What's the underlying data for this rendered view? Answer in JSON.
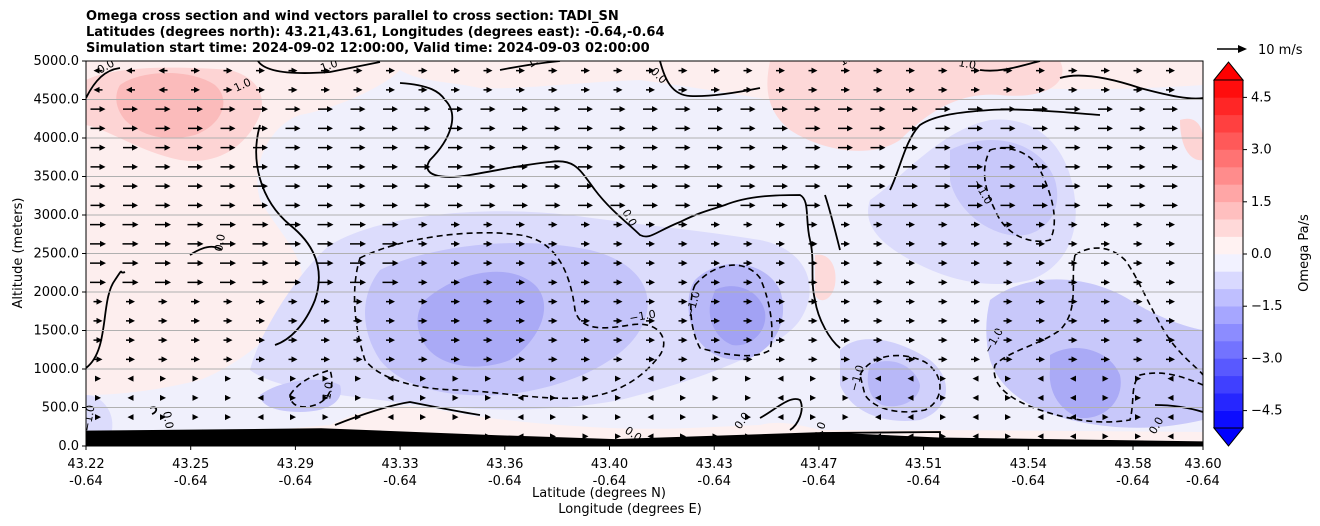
{
  "chart_data": {
    "type": "heatmap",
    "title_lines": [
      "Omega cross section and wind vectors parallel to cross section: TADI_SN",
      "Latitudes (degrees north): 43.21,43.61, Longitudes (degrees east): -0.64,-0.64",
      "Simulation start time: 2024-09-02 12:00:00, Valid time: 2024-09-03 02:00:00"
    ],
    "ylabel": "Altitude (meters)",
    "xlabel_lines": [
      "Latitude (degrees N)",
      "Longitude (degrees E)"
    ],
    "y_ticks": [
      "0.0",
      "500.0",
      "1000.0",
      "1500.0",
      "2000.0",
      "2500.0",
      "3000.0",
      "3500.0",
      "4000.0",
      "4500.0",
      "5000.0"
    ],
    "y_tick_values": [
      0,
      500,
      1000,
      1500,
      2000,
      2500,
      3000,
      3500,
      4000,
      4500,
      5000
    ],
    "ylim": [
      0,
      5000
    ],
    "x_ticks": [
      {
        "lat": "43.22",
        "lon": "-0.64"
      },
      {
        "lat": "43.25",
        "lon": "-0.64"
      },
      {
        "lat": "43.29",
        "lon": "-0.64"
      },
      {
        "lat": "43.33",
        "lon": "-0.64"
      },
      {
        "lat": "43.36",
        "lon": "-0.64"
      },
      {
        "lat": "43.40",
        "lon": "-0.64"
      },
      {
        "lat": "43.43",
        "lon": "-0.64"
      },
      {
        "lat": "43.47",
        "lon": "-0.64"
      },
      {
        "lat": "43.51",
        "lon": "-0.64"
      },
      {
        "lat": "43.54",
        "lon": "-0.64"
      },
      {
        "lat": "43.58",
        "lon": "-0.64"
      },
      {
        "lat": "43.60",
        "lon": "-0.64"
      }
    ],
    "xlim": [
      43.22,
      43.6
    ],
    "horizontal_grid": true,
    "colorbar": {
      "label": "Omega Pa/s",
      "range": [
        -5.0,
        5.0
      ],
      "ticks": [
        "4.5",
        "3.0",
        "1.5",
        "0.0",
        "−1.5",
        "−3.0",
        "−4.5"
      ],
      "tick_values": [
        4.5,
        3.0,
        1.5,
        0.0,
        -1.5,
        -3.0,
        -4.5
      ],
      "extend": "both",
      "low_color": "#0000ff",
      "high_color": "#ff0000"
    },
    "quiver_key": "10 m/s",
    "contour_levels": [
      -1.0,
      0.0,
      1.0
    ],
    "contour_labels": [
      "0.0",
      "1.0",
      "−1.0"
    ],
    "omega_regions": [
      {
        "lat": 43.245,
        "alt": 4400,
        "omega": 1.6
      },
      {
        "lat": 43.39,
        "alt": 1800,
        "omega": -2.0
      },
      {
        "lat": 43.44,
        "alt": 1700,
        "omega": -1.7
      },
      {
        "lat": 43.53,
        "alt": 3000,
        "omega": -1.3
      },
      {
        "lat": 43.57,
        "alt": 1200,
        "omega": -1.8
      },
      {
        "lat": 43.48,
        "alt": 4600,
        "omega": 0.8
      }
    ],
    "terrain_altitude_m": [
      {
        "lat": 43.22,
        "alt": 200
      },
      {
        "lat": 43.3,
        "alt": 230
      },
      {
        "lat": 43.36,
        "alt": 140
      },
      {
        "lat": 43.4,
        "alt": 90
      },
      {
        "lat": 43.47,
        "alt": 180
      },
      {
        "lat": 43.51,
        "alt": 110
      },
      {
        "lat": 43.6,
        "alt": 60
      }
    ]
  }
}
